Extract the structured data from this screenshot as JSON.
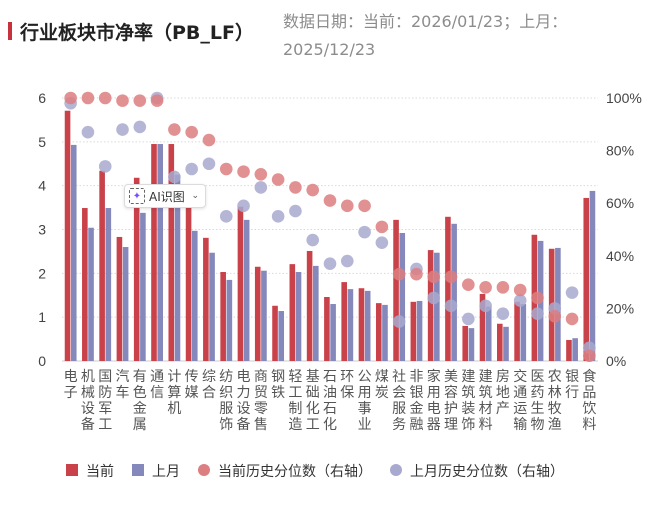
{
  "header": {
    "title": "行业板块市净率（PB_LF）",
    "date_line1": "数据日期：当前：2026/01/23；上月：",
    "date_line2": "2025/12/23"
  },
  "tooltip": {
    "label": "AI识图",
    "icon": "sparkle-scan-icon",
    "chevron": "⌄"
  },
  "chart_data": {
    "type": "bar",
    "title": "行业板块市净率（PB_LF）",
    "xlabel": "",
    "ylabel": "",
    "ylim": [
      0,
      6
    ],
    "y_ticks": [
      "0",
      "1",
      "2",
      "3",
      "4",
      "5",
      "6"
    ],
    "y2lim": [
      0,
      100
    ],
    "y2_ticks": [
      "0%",
      "20%",
      "40%",
      "60%",
      "80%",
      "100%"
    ],
    "grid": true,
    "legend_position": "bottom",
    "categories": [
      "电子",
      "机械设备",
      "国防军工",
      "汽车",
      "有色金属",
      "通信",
      "计算机",
      "传媒",
      "综合",
      "纺织服饰",
      "电力设备",
      "商贸零售",
      "钢铁",
      "轻工制造",
      "基础化工",
      "石油石化",
      "环保",
      "公用事业",
      "煤炭",
      "社会服务",
      "非银金融",
      "家用电器",
      "美容护理",
      "建筑装饰",
      "建筑材料",
      "房地产",
      "交通运输",
      "医药生物",
      "农林牧渔",
      "银行",
      "食品饮料"
    ],
    "series": [
      {
        "name": "当前",
        "kind": "bar",
        "axis": "left",
        "color": "#c9424a",
        "values": [
          5.71,
          3.49,
          4.34,
          2.83,
          4.18,
          4.95,
          4.95,
          3.95,
          2.81,
          2.03,
          3.52,
          2.15,
          1.26,
          2.21,
          2.51,
          1.46,
          1.8,
          1.66,
          1.32,
          3.22,
          1.35,
          2.53,
          3.29,
          0.8,
          1.53,
          0.85,
          1.35,
          2.88,
          2.56,
          0.48,
          3.72
        ]
      },
      {
        "name": "上月",
        "kind": "bar",
        "axis": "left",
        "color": "#8588bb",
        "values": [
          4.93,
          3.04,
          3.49,
          2.6,
          3.38,
          4.95,
          4.25,
          2.97,
          2.47,
          1.85,
          3.22,
          2.06,
          1.14,
          2.03,
          2.17,
          1.3,
          1.64,
          1.6,
          1.28,
          2.92,
          1.37,
          2.47,
          3.13,
          0.75,
          1.24,
          0.78,
          1.3,
          2.74,
          2.58,
          0.52,
          3.88
        ]
      },
      {
        "name": "当前历史分位数（右轴）",
        "kind": "scatter",
        "axis": "right",
        "color": "#dd7e80",
        "values": [
          100,
          100,
          100,
          99,
          99,
          99,
          88,
          87,
          84,
          73,
          72,
          71,
          69,
          66,
          65,
          61,
          59,
          59,
          51,
          33,
          33,
          32,
          32,
          29,
          28,
          28,
          27,
          24,
          17,
          16,
          2
        ]
      },
      {
        "name": "上月历史分位数（右轴）",
        "kind": "scatter",
        "axis": "right",
        "color": "#a8a9cf",
        "values": [
          98,
          87,
          74,
          88,
          89,
          100,
          70,
          73,
          75,
          55,
          59,
          66,
          55,
          57,
          46,
          37,
          38,
          49,
          45,
          15,
          35,
          24,
          21,
          16,
          21,
          18,
          23,
          18,
          20,
          26,
          5
        ]
      }
    ]
  }
}
